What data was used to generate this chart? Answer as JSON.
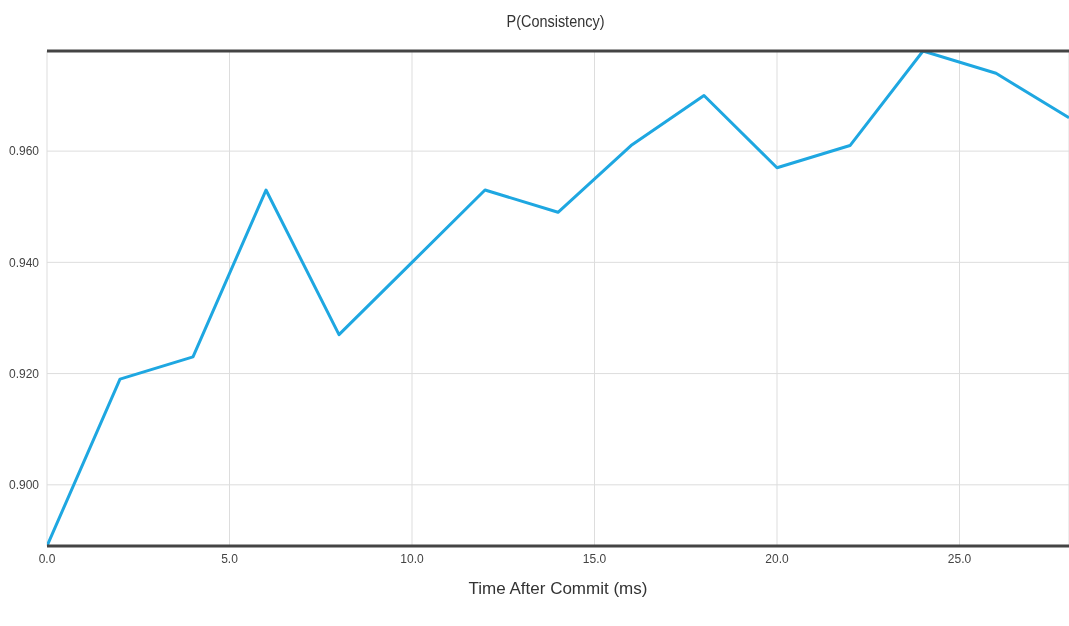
{
  "chart_data": {
    "type": "line",
    "title": "P(Consistency)",
    "xlabel": "Time After Commit (ms)",
    "x": [
      0,
      2,
      4,
      6,
      8,
      10,
      12,
      14,
      16,
      18,
      20,
      22,
      24,
      26,
      28
    ],
    "series": [
      {
        "color": "#1ea7e1",
        "values": [
          0.889,
          0.919,
          0.923,
          0.953,
          0.927,
          0.94,
          0.953,
          0.949,
          0.961,
          0.97,
          0.957,
          0.961,
          0.978,
          0.974,
          0.966
        ]
      }
    ],
    "xlim": [
      0,
      28
    ],
    "ylim": [
      0.889,
      0.978
    ],
    "xticks": [
      {
        "value": 0,
        "label": "0.0"
      },
      {
        "value": 5,
        "label": "5.0"
      },
      {
        "value": 10,
        "label": "10.0"
      },
      {
        "value": 15,
        "label": "15.0"
      },
      {
        "value": 20,
        "label": "20.0"
      },
      {
        "value": 25,
        "label": "25.0"
      }
    ],
    "yticks": [
      {
        "value": 0.9,
        "label": "0.900"
      },
      {
        "value": 0.92,
        "label": "0.920"
      },
      {
        "value": 0.94,
        "label": "0.940"
      },
      {
        "value": 0.96,
        "label": "0.960"
      }
    ],
    "grid": true,
    "legend": false,
    "marker": "none",
    "line_style": "solid"
  }
}
